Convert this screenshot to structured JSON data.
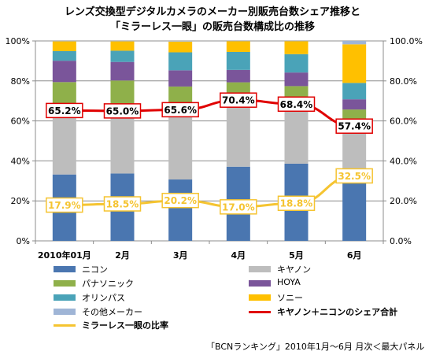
{
  "chart_data": {
    "type": "bar",
    "stacked": true,
    "title": "レンズ交換型デジタルカメラのメーカー別販売台数シェア推移と",
    "subtitle": "「ミラーレス一眼」の販売台数構成比の推移",
    "categories": [
      "2010年01月",
      "2月",
      "3月",
      "4月",
      "5月",
      "6月"
    ],
    "y_left_ticks": [
      "0%",
      "20%",
      "40%",
      "60%",
      "80%",
      "100%"
    ],
    "y_right_ticks": [
      "0.0%",
      "20.0%",
      "40.0%",
      "60.0%",
      "80.0%",
      "100.0%"
    ],
    "ylim": [
      0,
      100
    ],
    "grid": true,
    "series": [
      {
        "name": "ニコン",
        "color": "#4a76b0",
        "values": [
          33.2,
          33.7,
          30.7,
          37.1,
          38.6,
          32.3
        ]
      },
      {
        "name": "キヤノン",
        "color": "#bdbdbd",
        "values": [
          32.0,
          31.3,
          34.9,
          33.3,
          29.8,
          25.1
        ]
      },
      {
        "name": "パナソニック",
        "color": "#8fb04a",
        "values": [
          14.2,
          15.2,
          11.6,
          8.9,
          9.0,
          8.3
        ]
      },
      {
        "name": "HOYA",
        "color": "#7a559a",
        "values": [
          10.7,
          9.3,
          8.1,
          6.2,
          6.8,
          5.1
        ]
      },
      {
        "name": "オリンパス",
        "color": "#4aa3b8",
        "values": [
          4.8,
          5.6,
          9.0,
          9.0,
          9.2,
          8.2
        ]
      },
      {
        "name": "ソニー",
        "color": "#ffc000",
        "values": [
          4.9,
          4.7,
          5.4,
          5.4,
          6.5,
          19.3
        ]
      },
      {
        "name": "その他メーカー",
        "color": "#9fb5d6",
        "values": [
          0.2,
          0.2,
          0.3,
          0.1,
          0.1,
          1.7
        ]
      }
    ],
    "lines": [
      {
        "name": "キヤノン＋ニコンのシェア合計",
        "color": "#e00000",
        "values": [
          65.2,
          65.0,
          65.6,
          70.4,
          68.4,
          57.4
        ],
        "labels": [
          "65.2%",
          "65.0%",
          "65.6%",
          "70.4%",
          "68.4%",
          "57.4%"
        ]
      },
      {
        "name": "ミラーレス一眼の比率",
        "color": "#f5c431",
        "values": [
          17.9,
          18.5,
          20.2,
          17.0,
          18.8,
          32.5
        ],
        "labels": [
          "17.9%",
          "18.5%",
          "20.2%",
          "17.0%",
          "18.8%",
          "32.5%"
        ]
      }
    ],
    "legend_position": "bottom"
  },
  "source_note": "「BCNランキング」2010年1月〜6月 月次＜最大パネル＞"
}
